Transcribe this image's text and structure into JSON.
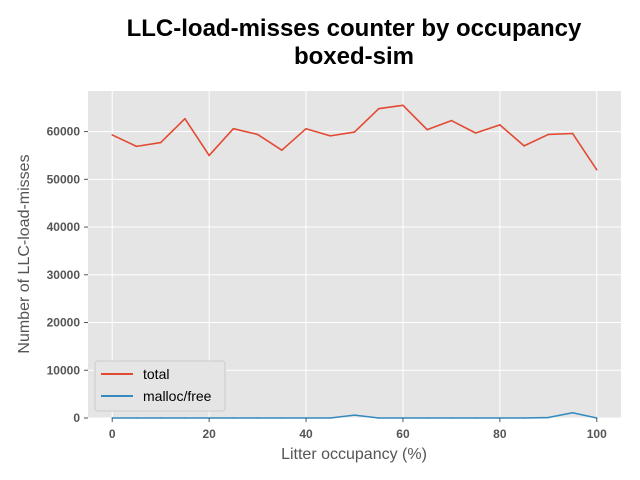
{
  "chart_data": {
    "type": "line",
    "title_lines": [
      "LLC-load-misses counter by occupancy",
      "boxed-sim"
    ],
    "xlabel": "Litter occupancy (%)",
    "ylabel": "Number of LLC-load-misses",
    "xlim": [
      -5,
      105
    ],
    "ylim": [
      0,
      68500
    ],
    "xticks": [
      "0",
      "20",
      "40",
      "60",
      "80",
      "100"
    ],
    "yticks": [
      "0",
      "10000",
      "20000",
      "30000",
      "40000",
      "50000",
      "60000"
    ],
    "grid": true,
    "legend_position": "lower-left",
    "x": [
      0,
      5,
      10,
      15,
      20,
      25,
      30,
      35,
      40,
      45,
      50,
      55,
      60,
      65,
      70,
      75,
      80,
      85,
      90,
      95,
      100
    ],
    "series": [
      {
        "name": "total",
        "color": "#e24a33",
        "values": [
          59300,
          56900,
          57700,
          62700,
          55000,
          60600,
          59400,
          56100,
          60600,
          59100,
          59900,
          64800,
          65500,
          60400,
          62300,
          59700,
          61400,
          57000,
          59400,
          59600,
          52000
        ]
      },
      {
        "name": "malloc/free",
        "color": "#348abd",
        "values": [
          0,
          0,
          0,
          0,
          0,
          0,
          0,
          0,
          0,
          0,
          600,
          0,
          0,
          0,
          0,
          0,
          0,
          0,
          100,
          1100,
          0
        ]
      }
    ]
  }
}
